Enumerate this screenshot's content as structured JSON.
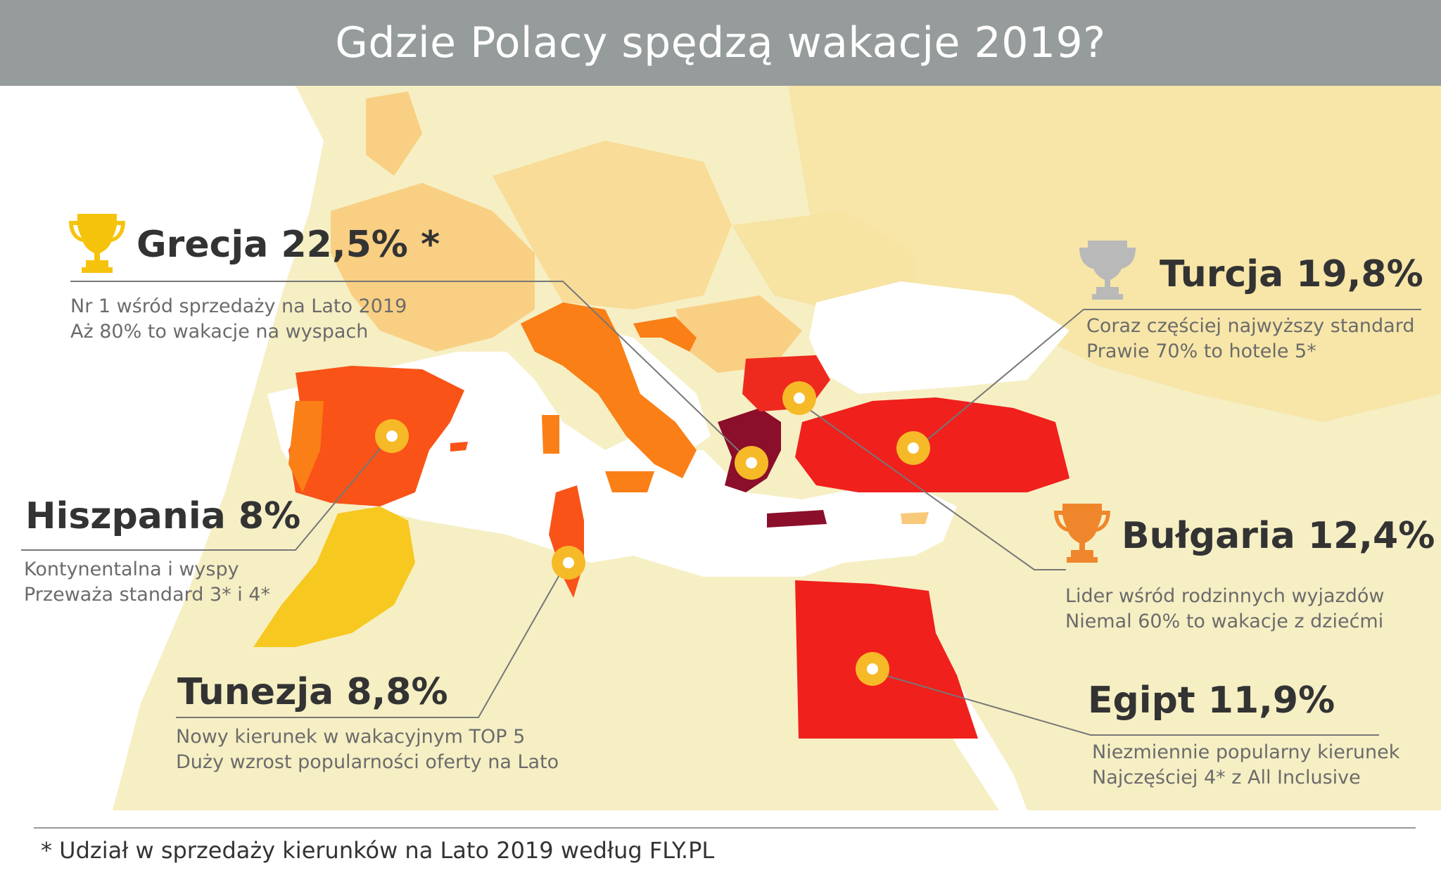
{
  "title": "Gdzie Polacy spędzą wakacje 2019?",
  "colors": {
    "title_bg": "#959c9b",
    "sea": "#ffffff",
    "land_light": "#f6efc4",
    "land_mid": "#f7e3a2",
    "land_orange_light": "#f9c97a",
    "greece": "#8b0e2a",
    "turkey_egypt": "#f0201c",
    "bulgaria": "#ee2a1f",
    "spain": "#f95318",
    "italy_croatia": "#fa7f16",
    "morocco": "#f7c820",
    "marker": "#f6b928"
  },
  "destinations": [
    {
      "name": "Grecja",
      "share": "22,5%",
      "asterisk": "*",
      "trophy": "gold-trophy-icon",
      "line1": "Nr 1 wśród sprzedaży na Lato 2019",
      "line2": "Aż 80% to wakacje na wyspach"
    },
    {
      "name": "Turcja",
      "share": "19,8%",
      "trophy": "silver-trophy-icon",
      "line1": "Coraz częściej najwyższy standard",
      "line2": "Prawie 70% to hotele 5*"
    },
    {
      "name": "Bułgaria",
      "share": "12,4%",
      "trophy": "bronze-trophy-icon",
      "line1": "Lider wśród rodzinnych wyjazdów",
      "line2": "Niemal 60% to wakacje z dziećmi"
    },
    {
      "name": "Egipt",
      "share": "11,9%",
      "line1": "Niezmiennie popularny kierunek",
      "line2": "Najczęściej 4* z All Inclusive"
    },
    {
      "name": "Tunezja",
      "share": "8,8%",
      "line1": "Nowy kierunek w wakacyjnym TOP 5",
      "line2": "Duży wzrost popularności oferty na Lato"
    },
    {
      "name": "Hiszpania",
      "share": "8%",
      "line1": "Kontynentalna i wyspy",
      "line2": "Przeważa standard 3* i 4*"
    }
  ],
  "footer": "* Udział w sprzedaży kierunków na Lato 2019 według FLY.PL"
}
